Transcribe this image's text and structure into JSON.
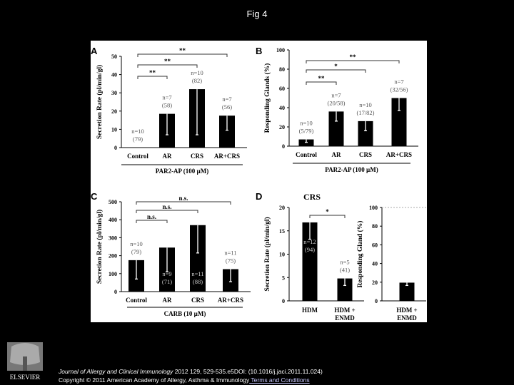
{
  "slide_title": "Fig 4",
  "citation": {
    "journal": "Journal of Allergy and Clinical Immunology",
    "details": " 2012 129, 529-535.e5DOI: (10.1016/j.jaci.2011.11.024)",
    "copyright": "Copyright © 2011 American Academy of Allergy, Asthma & Immunology",
    "terms_link": " Terms and Conditions"
  },
  "logo_text": "ELSEVIER",
  "chart_data": [
    {
      "panel": "A",
      "type": "bar",
      "ylabel": "Secretion Rate (pl/min/gl)",
      "ylim": [
        0,
        50
      ],
      "yticks": [
        0,
        10,
        20,
        30,
        40,
        50
      ],
      "categories": [
        "Control",
        "AR",
        "CRS",
        "AR+CRS"
      ],
      "values": [
        0,
        18.5,
        32,
        17.5
      ],
      "error_lower": [
        0,
        7,
        7,
        9.5
      ],
      "n_labels": [
        "n=10",
        "n=7",
        "n=10",
        "n=7"
      ],
      "count_labels": [
        "(79)",
        "(58)",
        "(82)",
        "(56)"
      ],
      "group_label": "PAR2-AP (100 µM)",
      "significance": [
        {
          "from": "Control",
          "to": "AR",
          "label": "**"
        },
        {
          "from": "Control",
          "to": "CRS",
          "label": "**"
        },
        {
          "from": "Control",
          "to": "AR+CRS",
          "label": "**"
        }
      ]
    },
    {
      "panel": "B",
      "type": "bar",
      "ylabel": "Responding Glands (%)",
      "ylim": [
        0,
        100
      ],
      "yticks": [
        0,
        20,
        40,
        60,
        80,
        100
      ],
      "categories": [
        "Control",
        "AR",
        "CRS",
        "AR+CRS"
      ],
      "values": [
        7,
        36,
        26,
        50
      ],
      "error_lower": [
        4,
        26,
        16,
        37
      ],
      "n_labels": [
        "n=10",
        "n=7",
        "n=10",
        "n=7"
      ],
      "count_labels": [
        "(5/79)",
        "(20/58)",
        "(17/82)",
        "(32/56)"
      ],
      "group_label": "PAR2-AP (100 µM)",
      "significance": [
        {
          "from": "Control",
          "to": "AR",
          "label": "**"
        },
        {
          "from": "Control",
          "to": "CRS",
          "label": "*"
        },
        {
          "from": "Control",
          "to": "AR+CRS",
          "label": "**"
        }
      ]
    },
    {
      "panel": "C",
      "type": "bar",
      "ylabel": "Secretion Rate (pl/min/gl)",
      "ylim": [
        0,
        500
      ],
      "yticks": [
        0,
        100,
        200,
        300,
        400,
        500
      ],
      "categories": [
        "Control",
        "AR",
        "CRS",
        "AR+CRS"
      ],
      "values": [
        175,
        245,
        370,
        125
      ],
      "error_lower": [
        70,
        110,
        215,
        55
      ],
      "n_labels": [
        "n=10",
        "n=9",
        "n=11",
        "n=11"
      ],
      "count_labels": [
        "(79)",
        "(71)",
        "(88)",
        "(75)"
      ],
      "group_label": "CARB (10 µM)",
      "significance": [
        {
          "from": "Control",
          "to": "AR",
          "label": "n.s."
        },
        {
          "from": "Control",
          "to": "CRS",
          "label": "n.s."
        },
        {
          "from": "Control",
          "to": "AR+CRS",
          "label": "n.s."
        }
      ]
    },
    {
      "panel": "D",
      "type": "bar",
      "title": "CRS",
      "ylabel": "Secretion Rate (pl/min/gl)",
      "ylim": [
        0,
        20
      ],
      "yticks": [
        0,
        5,
        10,
        15,
        20
      ],
      "categories": [
        "HDM",
        "HDM + ENMD"
      ],
      "values": [
        16.8,
        4.8
      ],
      "error_lower": [
        13.2,
        3.3
      ],
      "n_labels": [
        "n=12",
        "n=5"
      ],
      "count_labels": [
        "(94)",
        "(41)"
      ],
      "significance": [
        {
          "from": "HDM",
          "to": "HDM + ENMD",
          "label": "*"
        }
      ]
    },
    {
      "panel": "D-right",
      "type": "bar",
      "ylabel": "Responding Gland (%)",
      "ylim": [
        0,
        100
      ],
      "yticks": [
        0,
        20,
        40,
        60,
        80,
        100
      ],
      "categories": [
        "HDM + ENMD"
      ],
      "values": [
        19.5
      ],
      "error_lower": [
        16.5
      ],
      "reference_line": 100
    }
  ]
}
